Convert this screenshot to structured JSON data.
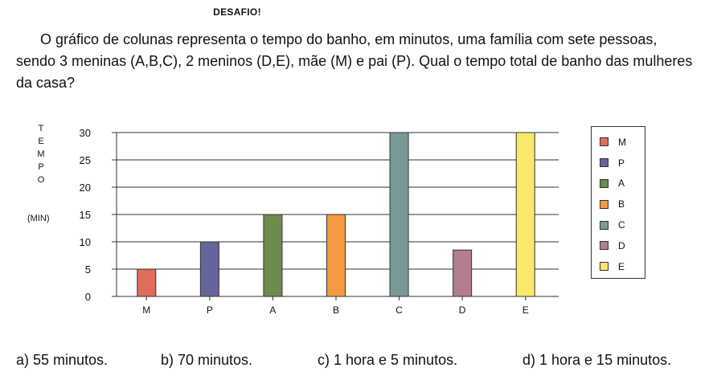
{
  "header": {
    "title": "DESAFIO!"
  },
  "question": "O gráfico de colunas representa o tempo do banho, em minutos, uma família com sete pessoas, sendo 3 meninas (A,B,C), 2 meninos (D,E), mãe (M) e pai (P). Qual o tempo total de banho das mulheres da casa?",
  "axis": {
    "ylabel_letters": [
      "T",
      "E",
      "M",
      "P",
      "O"
    ],
    "yunit": "(MIN)"
  },
  "chart_data": {
    "type": "bar",
    "categories": [
      "M",
      "P",
      "A",
      "B",
      "C",
      "D",
      "E"
    ],
    "values": [
      5,
      10,
      15,
      15,
      30,
      8.5,
      30
    ],
    "colors": [
      "#e06c5c",
      "#66649c",
      "#6f8a4e",
      "#f59a43",
      "#779a98",
      "#b27d8c",
      "#fbe86a"
    ],
    "yticks": [
      0,
      5,
      10,
      15,
      20,
      25,
      30
    ],
    "ylim": [
      0,
      30
    ],
    "ylabel": "TEMPO (MIN)",
    "grid": true,
    "legend": "right",
    "legend_entries": [
      "M",
      "P",
      "A",
      "B",
      "C",
      "D",
      "E"
    ]
  },
  "answers": [
    "a) 55 minutos.",
    "b) 70 minutos.",
    "c) 1 hora e 5 minutos.",
    "d) 1 hora e 15 minutos."
  ]
}
